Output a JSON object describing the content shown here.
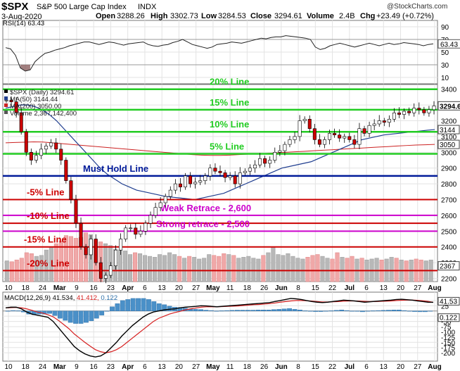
{
  "header": {
    "symbol": "$SPX",
    "name": "S&P 500 Large Cap Index",
    "exchange": "INDX",
    "date": "3-Aug-2020",
    "open_label": "Open",
    "open": "3288.26",
    "high_label": "High",
    "high": "3302.73",
    "low_label": "Low",
    "low": "3284.53",
    "close_label": "Close",
    "close": "3294.61",
    "volume_label": "Volume",
    "volume": "2.4B",
    "chg_label": "Chg",
    "chg": "+23.49 (+0.72%)",
    "watermark": "@StockCharts.com"
  },
  "colors": {
    "green_line": "#22cc22",
    "blue_line": "#001a99",
    "red_line": "#cc0000",
    "magenta_line": "#cc00cc",
    "ma50": "#1f3d8f",
    "ma200": "#cc2222",
    "vol_up": "#b8b8b8",
    "vol_down": "#f0a8a8",
    "candle_up": "#ffffff",
    "candle_down": "#cc0000",
    "macd_hist": "#4a90c8"
  },
  "chart_data": [
    {
      "type": "line",
      "panel": "rsi",
      "title": "RSI(14) 63.43",
      "ylim": [
        0,
        100
      ],
      "ticks": [
        10,
        30,
        50,
        70,
        90
      ],
      "reference_lines": [
        30,
        70
      ],
      "last_value_label": "63.43",
      "series": [
        {
          "values": [
            57,
            55,
            45,
            25,
            20,
            22,
            35,
            42,
            48,
            50,
            53,
            55,
            57,
            60,
            62,
            64,
            66,
            66,
            64,
            62,
            64,
            66,
            65,
            63,
            61,
            63,
            64,
            65,
            66,
            62,
            60,
            59,
            61,
            62,
            65,
            67,
            70,
            66,
            62,
            60,
            58,
            56,
            58,
            62,
            63,
            64,
            66,
            65,
            64,
            66,
            68,
            70,
            72,
            71,
            73,
            74,
            74,
            76,
            75,
            74,
            73,
            72,
            70,
            58,
            54,
            56,
            60,
            62,
            64,
            62,
            60,
            58,
            60,
            62,
            64,
            62,
            60,
            62,
            64,
            62,
            63,
            65,
            64,
            63,
            62,
            60,
            62,
            63
          ]
        }
      ]
    },
    {
      "type": "candlestick",
      "panel": "price",
      "legend": [
        "$SPX (Daily) 3294.61",
        "MA(50) 3144.44",
        "MA(200) 3050.00",
        "Volume 2,367,142,400"
      ],
      "ylim": [
        2180,
        3430
      ],
      "ticks": [
        2200,
        2300,
        2400,
        2500,
        2600,
        2700,
        2800,
        2900,
        3000,
        3100,
        3200,
        3300,
        3400
      ],
      "price_tags": [
        {
          "label": "3294.61",
          "value": 3294.61
        },
        {
          "label": "3144",
          "value": 3144
        },
        {
          "label": "3050",
          "value": 3050
        },
        {
          "label": "2367",
          "value": 2280
        }
      ],
      "close": [
        3330,
        3320,
        3250,
        3130,
        3000,
        2950,
        2980,
        3020,
        3040,
        3060,
        3020,
        2950,
        2820,
        2700,
        2550,
        2400,
        2350,
        2450,
        2300,
        2200,
        2220,
        2280,
        2380,
        2450,
        2520,
        2520,
        2480,
        2500,
        2550,
        2600,
        2650,
        2680,
        2720,
        2760,
        2800,
        2780,
        2850,
        2800,
        2810,
        2820,
        2850,
        2900,
        2880,
        2870,
        2840,
        2850,
        2800,
        2870,
        2880,
        2900,
        2920,
        2960,
        2930,
        2950,
        3000,
        3010,
        3050,
        3080,
        3100,
        3200,
        3210,
        3150,
        3080,
        3050,
        3080,
        3120,
        3110,
        3090,
        3100,
        3080,
        3050,
        3150,
        3120,
        3170,
        3180,
        3200,
        3190,
        3210,
        3250,
        3240,
        3260,
        3250,
        3280,
        3270,
        3250,
        3270,
        3294
      ],
      "ma50": [
        3280,
        3290,
        3300,
        3300,
        3290,
        3270,
        3240,
        3200,
        3150,
        3100,
        3050,
        3000,
        2950,
        2900,
        2860,
        2830,
        2800,
        2780,
        2760,
        2750,
        2740,
        2730,
        2720,
        2715,
        2710,
        2705,
        2700,
        2710,
        2720,
        2730,
        2740,
        2760,
        2780,
        2800,
        2820,
        2840,
        2860,
        2880,
        2900,
        2910,
        2920,
        2930,
        2940,
        2960,
        2980,
        3000,
        3020,
        3040,
        3060,
        3080,
        3090,
        3100,
        3110,
        3115,
        3120,
        3125,
        3130,
        3135,
        3140,
        3144
      ],
      "ma200": [
        3060,
        3062,
        3064,
        3066,
        3065,
        3060,
        3055,
        3050,
        3045,
        3040,
        3035,
        3030,
        3025,
        3020,
        3015,
        3010,
        3005,
        3000,
        2995,
        2990,
        2985,
        2982,
        2980,
        2980,
        2982,
        2985,
        2988,
        2990,
        2993,
        2996,
        3000,
        3003,
        3006,
        3010,
        3013,
        3016,
        3020,
        3023,
        3026,
        3030,
        3033,
        3036,
        3040,
        3043,
        3046,
        3048,
        3050
      ],
      "volume_values": [
        2.3,
        2.2,
        2.4,
        2.6,
        3.2,
        3.1,
        2.8,
        2.9,
        3.5,
        3.8,
        4.2,
        4.5,
        5.1,
        5.0,
        4.8,
        4.9,
        5.4,
        5.2,
        4.6,
        4.4,
        4.2,
        4.0,
        3.6,
        3.5,
        3.4,
        3.0,
        3.2,
        3.1,
        2.9,
        2.8,
        2.7,
        3.0,
        2.9,
        3.2,
        3.0,
        2.8,
        2.6,
        2.8,
        2.7,
        2.5,
        2.6,
        3.0,
        2.9,
        2.8,
        3.1,
        3.0,
        2.9,
        2.6,
        2.7,
        2.8,
        2.6,
        2.5,
        2.9,
        3.2,
        3.8,
        3.0,
        2.9,
        3.1,
        2.8,
        2.6,
        2.5,
        2.7,
        2.9,
        3.0,
        2.8,
        2.6,
        2.5,
        3.2,
        2.7,
        2.6,
        2.8,
        2.5,
        2.6,
        2.4,
        2.5,
        2.6,
        2.4,
        2.5,
        2.7,
        2.6,
        2.4,
        2.3,
        2.4,
        2.5,
        2.4,
        2.3,
        2.4
      ],
      "volume_ylim": [
        0,
        12
      ],
      "annotations": [
        {
          "label": "20% Line",
          "value": 3400,
          "color": "green"
        },
        {
          "label": "15% Line",
          "value": 3270,
          "color": "green"
        },
        {
          "label": "10% Line",
          "value": 3130,
          "color": "green"
        },
        {
          "label": "5% Line",
          "value": 2990,
          "color": "green"
        },
        {
          "label": "Must Hold Line",
          "value": 2850,
          "color": "blue"
        },
        {
          "label": "-5% Line",
          "value": 2700,
          "color": "red"
        },
        {
          "label": "Weak Retrace - 2,600",
          "value": 2600,
          "color": "magenta"
        },
        {
          "label": "-10% Line",
          "value": 2550,
          "color": "red"
        },
        {
          "label": "Strong retrace - 2,500",
          "value": 2500,
          "color": "magenta"
        },
        {
          "label": "-15% Line",
          "value": 2400,
          "color": "red"
        },
        {
          "label": "-20% Line",
          "value": 2250,
          "color": "red"
        }
      ]
    },
    {
      "type": "line",
      "panel": "macd",
      "title": "MACD(12,26,9) 41.534, 41.412, 0.122",
      "title_values": [
        "MACD(12,26,9) 41.534,",
        "41.412,",
        "0.122"
      ],
      "ylim": [
        -240,
        90
      ],
      "ticks": [
        -200,
        -175,
        -150,
        -125,
        -100,
        -75,
        -50,
        -25,
        25,
        50
      ],
      "last_value_labels": [
        "41.53",
        "0.122"
      ],
      "macd": [
        15,
        18,
        18,
        10,
        -5,
        -15,
        -20,
        -25,
        -30,
        -50,
        -80,
        -110,
        -140,
        -170,
        -190,
        -205,
        -215,
        -220,
        -215,
        -200,
        -175,
        -150,
        -120,
        -95,
        -70,
        -50,
        -30,
        -15,
        -5,
        0,
        5,
        8,
        10,
        15,
        18,
        20,
        22,
        25,
        24,
        22,
        20,
        22,
        24,
        26,
        28,
        30,
        32,
        34,
        36,
        38,
        40,
        45,
        50,
        55,
        60,
        58,
        55,
        50,
        45,
        42,
        40,
        42,
        45,
        48,
        52,
        50,
        48,
        45,
        42,
        44,
        46,
        48,
        50,
        52,
        55,
        56,
        54,
        52,
        48,
        45,
        42,
        41.5
      ],
      "signal": [
        15,
        16,
        17,
        15,
        10,
        3,
        -5,
        -10,
        -18,
        -28,
        -45,
        -65,
        -85,
        -110,
        -130,
        -150,
        -168,
        -185,
        -195,
        -200,
        -195,
        -185,
        -170,
        -150,
        -130,
        -110,
        -90,
        -70,
        -50,
        -35,
        -25,
        -15,
        -8,
        -2,
        5,
        10,
        14,
        18,
        20,
        20,
        20,
        21,
        22,
        23,
        24,
        26,
        28,
        30,
        31,
        33,
        35,
        38,
        42,
        45,
        48,
        50,
        50,
        49,
        47,
        45,
        43,
        43,
        44,
        45,
        47,
        48,
        48,
        47,
        46,
        45,
        45,
        46,
        47,
        48,
        50,
        51,
        52,
        52,
        51,
        49,
        46,
        41.4
      ],
      "histogram": [
        0,
        2,
        1,
        -5,
        -15,
        -18,
        -15,
        -15,
        -12,
        -22,
        -35,
        -45,
        -55,
        -60,
        -60,
        -55,
        -47,
        -35,
        -20,
        0,
        20,
        35,
        50,
        55,
        60,
        60,
        60,
        55,
        45,
        35,
        30,
        23,
        18,
        17,
        13,
        10,
        8,
        7,
        4,
        2,
        0,
        1,
        2,
        3,
        4,
        4,
        4,
        4,
        5,
        5,
        5,
        7,
        8,
        10,
        12,
        8,
        5,
        1,
        -2,
        -3,
        -3,
        -1,
        1,
        3,
        5,
        2,
        0,
        -2,
        -4,
        -1,
        1,
        2,
        3,
        4,
        5,
        5,
        2,
        0,
        -3,
        -4,
        -4,
        0.1
      ],
      "x_tick_labels": [
        "10",
        "18",
        "24",
        "Mar",
        "9",
        "16",
        "23",
        "Apr",
        "6",
        "13",
        "20",
        "27",
        "May",
        "11",
        "18",
        "26",
        "Jun",
        "8",
        "15",
        "22",
        "Jul",
        "6",
        "13",
        "20",
        "27",
        "Aug"
      ]
    }
  ]
}
